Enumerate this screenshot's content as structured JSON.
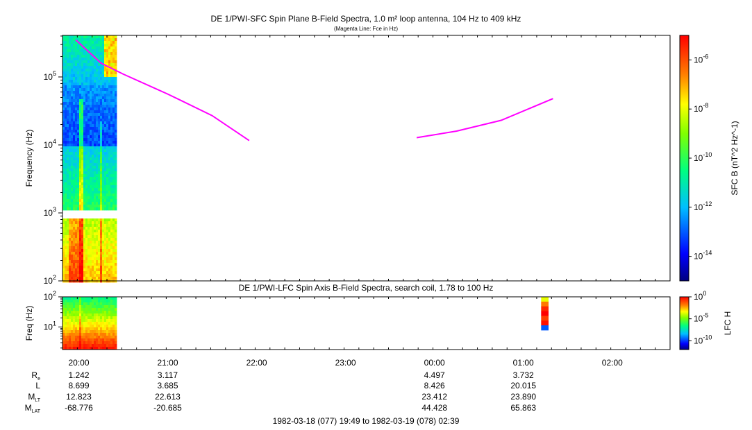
{
  "chart_data": [
    {
      "type": "heatmap",
      "title": "DE 1/PWI-SFC  Spin Plane B-Field Spectra, 1.0 m² loop antenna, 104 Hz to 409 kHz",
      "subtitle": "(Magenta Line: Fce in Hz)",
      "ylabel": "Frequency (Hz)",
      "yscale": "log",
      "ylim": [
        100,
        409000
      ],
      "y_ticks": [
        "10^2",
        "10^3",
        "10^4",
        "10^5"
      ],
      "colorbar": {
        "label": "SFC B (nT^2 Hz^-1)",
        "scale": "log",
        "range": [
          1e-15,
          1e-05
        ],
        "ticks": [
          "10^-6",
          "10^-8",
          "10^-10",
          "10^-12",
          "10^-14"
        ]
      },
      "data_time_range": [
        "19:49",
        "20:25"
      ],
      "data_gap_frequency_hz": [
        900,
        1050
      ],
      "series": [
        {
          "name": "Fce",
          "color": "#ff00ff",
          "segments": [
            [
              {
                "t": "19:58",
                "f": 350000
              },
              {
                "t": "20:15",
                "f": 160000
              },
              {
                "t": "20:30",
                "f": 110000
              },
              {
                "t": "21:00",
                "f": 56000
              },
              {
                "t": "21:30",
                "f": 27000
              },
              {
                "t": "21:55",
                "f": 11600
              }
            ],
            [
              {
                "t": "23:48",
                "f": 12800
              },
              {
                "t": "00:15",
                "f": 16000
              },
              {
                "t": "00:45",
                "f": 23000
              },
              {
                "t": "01:20",
                "f": 48000
              }
            ]
          ]
        }
      ]
    },
    {
      "type": "heatmap",
      "title": "DE 1/PWI-LFC  Spin Axis B-Field Spectra, search coil, 1.78 to 100 Hz",
      "ylabel": "Freq (Hz)",
      "yscale": "log",
      "ylim": [
        1.78,
        100
      ],
      "y_ticks": [
        "10^1",
        "10^2"
      ],
      "colorbar": {
        "label": "LFC H",
        "scale": "log",
        "range": [
          1e-12,
          1
        ],
        "ticks": [
          "10^0",
          "10^-5",
          "10^-10"
        ]
      },
      "data_time_ranges": [
        [
          "19:49",
          "20:25"
        ],
        [
          "01:12",
          "01:17"
        ]
      ]
    }
  ],
  "x_axis": {
    "ticks": [
      "20:00",
      "21:00",
      "22:00",
      "23:00",
      "00:00",
      "01:00",
      "02:00"
    ]
  },
  "ephemeris": {
    "rows": [
      {
        "label": "R",
        "sub": "e",
        "values": [
          "1.242",
          "3.117",
          "",
          "",
          "4.497",
          "3.732",
          ""
        ]
      },
      {
        "label": "L",
        "sub": "",
        "values": [
          "8.699",
          "3.685",
          "",
          "",
          "8.426",
          "20.015",
          ""
        ]
      },
      {
        "label": "M",
        "sub": "LT",
        "values": [
          "12.823",
          "22.613",
          "",
          "",
          "23.412",
          "23.890",
          ""
        ]
      },
      {
        "label": "M",
        "sub": "LAT",
        "values": [
          "-68.776",
          "-20.685",
          "",
          "",
          "44.428",
          "65.863",
          ""
        ]
      }
    ]
  },
  "footer": "1982-03-18 (077) 19:49 to 1982-03-19 (078) 02:39"
}
